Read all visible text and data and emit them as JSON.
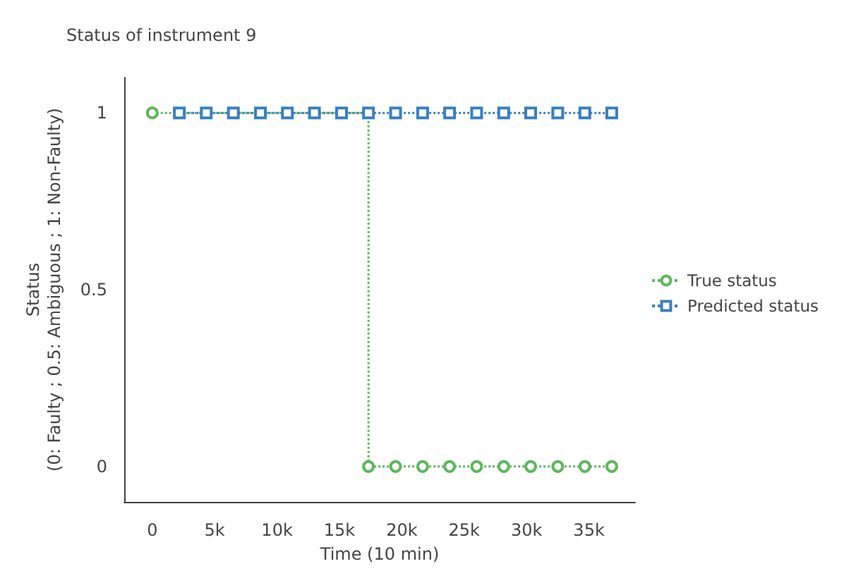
{
  "chart_data": {
    "type": "line",
    "title": "Status of instrument 9",
    "xlabel": "Time (10 min)",
    "ylabel": "Status\n(0: Faulty ; 0.5: Ambiguous ; 1: Non-Faulty)",
    "xlim": [
      -2250,
      38700
    ],
    "xticks": [
      0,
      {
        "value": 5000,
        "label": "5k"
      },
      {
        "value": 10000,
        "label": "10k"
      },
      {
        "value": 15000,
        "label": "15k"
      },
      {
        "value": 20000,
        "label": "20k"
      },
      {
        "value": 25000,
        "label": "25k"
      },
      {
        "value": 30000,
        "label": "30k"
      },
      {
        "value": 35000,
        "label": "35k"
      }
    ],
    "ylim": [
      -0.1,
      1.1
    ],
    "yticks": [
      0,
      0.5,
      1
    ],
    "grid": false,
    "legend": "right",
    "line_style": "dotted",
    "series": [
      {
        "name": "True status",
        "type": "step",
        "marker": "circle",
        "color": "#5cb85c",
        "x": [
          0,
          17330,
          19500,
          21670,
          23830,
          26000,
          28170,
          30330,
          32500,
          34670,
          36830
        ],
        "values": [
          1,
          0,
          0,
          0,
          0,
          0,
          0,
          0,
          0,
          0,
          0
        ]
      },
      {
        "name": "Predicted status",
        "type": "line",
        "marker": "square",
        "color": "#3a7fc1",
        "x": [
          2170,
          4330,
          6500,
          8670,
          10830,
          13000,
          15170,
          17330,
          19500,
          21670,
          23830,
          26000,
          28170,
          30330,
          32500,
          34670,
          36830
        ],
        "values": [
          1,
          1,
          1,
          1,
          1,
          1,
          1,
          1,
          1,
          1,
          1,
          1,
          1,
          1,
          1,
          1,
          1
        ]
      }
    ]
  }
}
